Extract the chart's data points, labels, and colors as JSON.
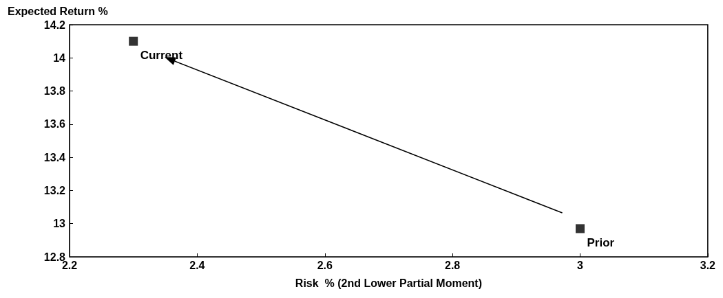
{
  "chart_data": {
    "type": "scatter",
    "ylabel": "Expected Return %",
    "xlabel": "Risk  % (2nd Lower Partial Moment)",
    "x": [
      2.3,
      3.0
    ],
    "values": [
      14.1,
      12.97
    ],
    "color": "#000000",
    "marker": "square",
    "grid": false,
    "xlim": [
      2.2,
      3.2
    ],
    "xticks": [
      2.2,
      2.4,
      2.6,
      2.8,
      3,
      3.2
    ],
    "ylim": [
      12.8,
      14.2
    ],
    "yticks": [
      12.8,
      13,
      13.2,
      13.4,
      13.6,
      13.8,
      14,
      14.2
    ],
    "annotations": [
      {
        "text": "Current",
        "x": 2.3,
        "y": 14.1
      },
      {
        "text": "Prior",
        "x": 3.0,
        "y": 12.97
      }
    ]
  }
}
